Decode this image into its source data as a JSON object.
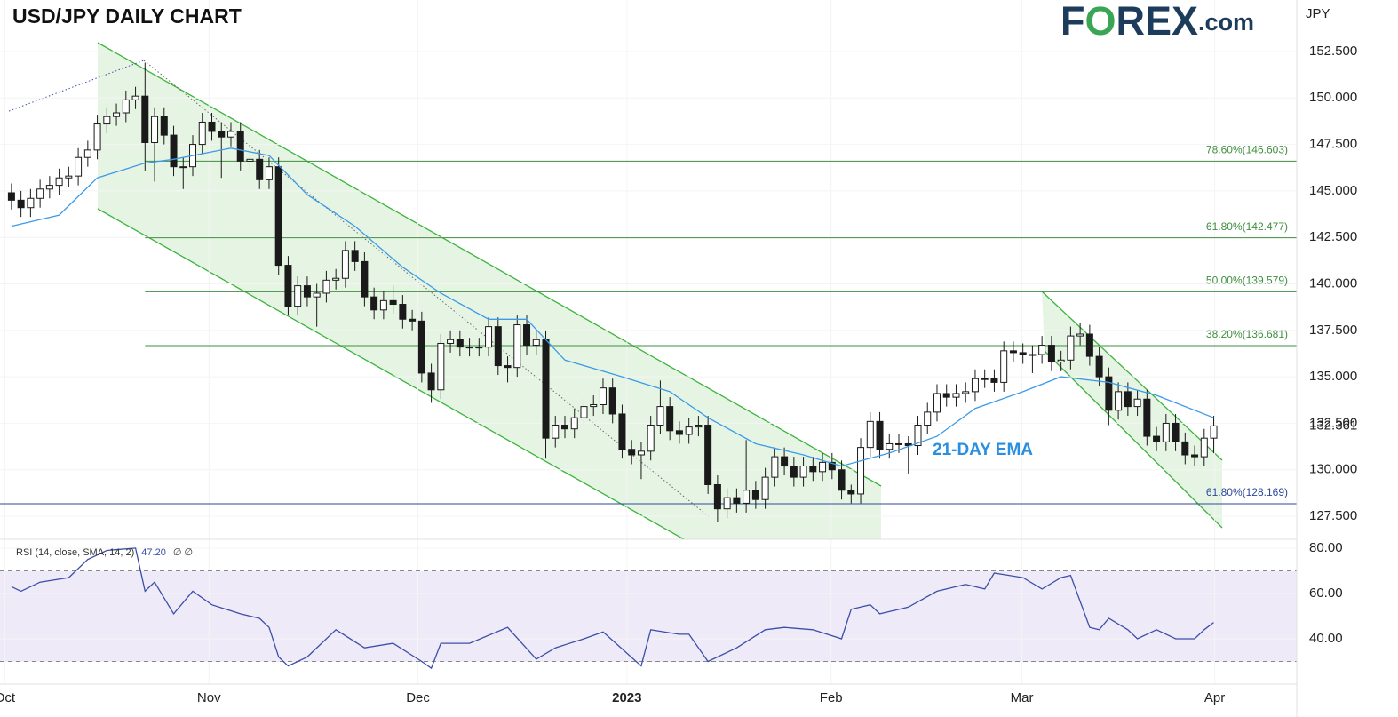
{
  "chart_data": {
    "type": "candlestick",
    "title": "USD/JPY DAILY CHART",
    "brand": [
      "F",
      "O",
      "REX",
      ".com"
    ],
    "unit_label": "JPY",
    "annotation": "21-DAY EMA",
    "xlim": [
      -1.2,
      134.7
    ],
    "xticks": [
      {
        "value": -0.7,
        "label": "Oct"
      },
      {
        "value": 20.7,
        "label": "Nov"
      },
      {
        "value": 42.6,
        "label": "Dec"
      },
      {
        "value": 64.5,
        "label": "2023",
        "emphasis": true
      },
      {
        "value": 85.9,
        "label": "Feb"
      },
      {
        "value": 105.9,
        "label": "Mar"
      },
      {
        "value": 126.1,
        "label": "Apr"
      }
    ],
    "ylim": [
      126.26,
      155.27
    ],
    "yticks": [
      {
        "value": 127.5,
        "label": "127.500"
      },
      {
        "value": 130,
        "label": "130.000"
      },
      {
        "value": 132.5,
        "label": "132.500"
      },
      {
        "value": 135,
        "label": "135.000"
      },
      {
        "value": 137.5,
        "label": "137.500"
      },
      {
        "value": 140,
        "label": "140.000"
      },
      {
        "value": 142.5,
        "label": "142.500"
      },
      {
        "value": 145,
        "label": "145.000"
      },
      {
        "value": 147.5,
        "label": "147.500"
      },
      {
        "value": 150,
        "label": "150.000"
      },
      {
        "value": 152.5,
        "label": "152.500"
      }
    ],
    "candles": {
      "up_color": "#ffffff",
      "down_color": "#1a1a1a",
      "border_color": "#1a1a1a",
      "open": [
        144.9,
        144.5,
        144.1,
        144.6,
        145.1,
        145.3,
        145.7,
        145.8,
        146.8,
        147.2,
        148.6,
        149.0,
        149.2,
        149.9,
        150.1,
        147.6,
        149.0,
        148.0,
        146.3,
        146.3,
        147.5,
        148.7,
        148.2,
        147.9,
        148.2,
        146.6,
        146.7,
        145.6,
        146.3,
        141.0,
        138.8,
        139.9,
        139.3,
        139.5,
        140.2,
        140.3,
        141.8,
        141.2,
        139.3,
        138.6,
        139.1,
        138.9,
        138.1,
        138.0,
        135.2,
        134.3,
        136.8,
        137.0,
        136.6,
        136.6,
        136.6,
        137.7,
        135.6,
        135.5,
        137.8,
        136.7,
        137.0,
        131.7,
        132.4,
        132.2,
        132.8,
        133.4,
        133.5,
        134.4,
        133.0,
        131.1,
        130.8,
        131.0,
        132.4,
        133.4,
        132.1,
        131.9,
        132.3,
        132.4,
        129.2,
        127.9,
        128.5,
        128.2,
        128.9,
        128.4,
        129.6,
        130.7,
        130.2,
        129.6,
        130.2,
        129.9,
        130.4,
        130.0,
        128.9,
        128.7,
        131.2,
        132.6,
        131.1,
        131.4,
        131.4,
        131.3,
        132.4,
        133.1,
        134.1,
        133.9,
        134.1,
        134.2,
        134.9,
        134.9,
        134.7,
        136.4,
        136.3,
        136.2,
        136.2,
        136.7,
        135.8,
        135.9,
        137.2,
        137.3,
        136.1,
        135.0,
        133.2,
        134.2,
        133.4,
        133.8,
        131.8,
        131.5,
        132.5,
        131.5,
        130.8,
        130.7,
        131.7
      ],
      "high": [
        145.4,
        145.0,
        145.1,
        145.6,
        145.8,
        146.2,
        146.3,
        147.3,
        147.7,
        149.1,
        149.5,
        149.7,
        150.4,
        150.6,
        151.9,
        149.5,
        149.5,
        148.5,
        146.8,
        148.0,
        149.2,
        149.2,
        148.7,
        148.7,
        148.7,
        147.2,
        147.2,
        146.8,
        146.8,
        141.5,
        140.4,
        140.4,
        140.0,
        140.7,
        140.8,
        142.3,
        142.3,
        141.7,
        139.8,
        139.6,
        139.9,
        139.4,
        138.6,
        138.5,
        135.7,
        137.3,
        137.5,
        137.5,
        137.1,
        137.1,
        138.2,
        138.2,
        136.1,
        138.3,
        138.3,
        137.5,
        137.5,
        132.9,
        132.9,
        133.3,
        133.9,
        134.0,
        134.9,
        134.9,
        133.5,
        131.6,
        131.5,
        132.9,
        134.8,
        133.9,
        132.6,
        132.8,
        132.9,
        132.9,
        129.7,
        129.0,
        129.0,
        131.6,
        129.4,
        130.1,
        131.2,
        131.2,
        130.7,
        130.7,
        130.7,
        130.9,
        130.9,
        130.5,
        129.2,
        131.7,
        133.1,
        133.1,
        131.9,
        131.9,
        131.8,
        132.9,
        133.6,
        134.6,
        134.6,
        134.6,
        134.7,
        135.4,
        135.4,
        135.4,
        136.9,
        136.9,
        136.8,
        136.7,
        137.2,
        137.2,
        136.4,
        137.7,
        137.9,
        137.8,
        136.6,
        135.5,
        134.7,
        134.7,
        134.3,
        134.3,
        132.3,
        133.0,
        133.0,
        132.0,
        131.3,
        132.2,
        132.9
      ],
      "low": [
        144.0,
        143.6,
        143.6,
        144.1,
        144.6,
        144.8,
        145.2,
        145.3,
        146.3,
        146.7,
        148.1,
        148.5,
        148.7,
        149.4,
        146.1,
        145.5,
        147.5,
        145.8,
        145.1,
        145.8,
        147.0,
        147.7,
        145.7,
        147.4,
        146.1,
        146.1,
        145.1,
        145.1,
        140.5,
        138.3,
        138.3,
        138.8,
        137.7,
        139.0,
        139.7,
        139.8,
        140.7,
        138.8,
        138.1,
        138.1,
        138.4,
        137.6,
        137.5,
        134.7,
        133.6,
        133.8,
        136.3,
        136.1,
        136.1,
        136.1,
        136.1,
        135.1,
        134.7,
        135.0,
        136.2,
        136.2,
        130.6,
        131.2,
        131.7,
        131.7,
        132.3,
        132.9,
        133.0,
        132.5,
        130.6,
        130.3,
        129.5,
        130.5,
        131.9,
        131.6,
        131.4,
        131.4,
        131.8,
        128.7,
        127.2,
        127.4,
        127.7,
        127.7,
        127.9,
        127.9,
        129.1,
        129.7,
        129.1,
        129.1,
        129.4,
        129.4,
        129.5,
        128.4,
        128.2,
        128.2,
        130.7,
        130.6,
        130.6,
        130.9,
        129.8,
        130.8,
        131.9,
        132.6,
        133.4,
        133.4,
        133.6,
        133.7,
        134.4,
        134.2,
        134.2,
        135.8,
        135.7,
        135.2,
        135.7,
        135.3,
        135.3,
        135.4,
        136.7,
        135.6,
        134.5,
        132.4,
        132.7,
        132.9,
        132.9,
        131.3,
        131.0,
        131.0,
        131.0,
        130.3,
        130.2,
        130.2,
        130.9
      ],
      "close": [
        144.5,
        144.1,
        144.6,
        145.1,
        145.3,
        145.7,
        145.8,
        146.8,
        147.2,
        148.6,
        149.0,
        149.2,
        149.9,
        150.1,
        147.6,
        149.0,
        148.0,
        146.3,
        146.3,
        147.5,
        148.7,
        148.2,
        147.9,
        148.2,
        146.6,
        146.7,
        145.6,
        146.3,
        141.0,
        138.8,
        139.9,
        139.3,
        139.5,
        140.2,
        140.3,
        141.8,
        141.2,
        139.3,
        138.6,
        139.1,
        138.9,
        138.1,
        138.0,
        135.2,
        134.3,
        136.8,
        137.0,
        136.6,
        136.6,
        136.6,
        137.7,
        135.6,
        135.5,
        137.8,
        136.7,
        137.0,
        131.7,
        132.4,
        132.2,
        132.8,
        133.4,
        133.5,
        134.4,
        133.0,
        131.1,
        130.8,
        131.0,
        132.4,
        133.4,
        132.1,
        131.9,
        132.3,
        132.4,
        129.2,
        127.9,
        128.5,
        128.2,
        128.9,
        128.4,
        129.6,
        130.7,
        130.2,
        129.6,
        130.2,
        129.9,
        130.4,
        130.0,
        128.9,
        128.7,
        131.2,
        132.6,
        131.1,
        131.4,
        131.4,
        131.3,
        132.4,
        133.1,
        134.1,
        133.9,
        134.1,
        134.2,
        134.9,
        134.9,
        134.7,
        136.4,
        136.3,
        136.2,
        136.2,
        136.7,
        135.8,
        135.9,
        137.2,
        137.3,
        136.1,
        135.0,
        133.2,
        134.2,
        133.4,
        133.8,
        131.8,
        131.5,
        132.5,
        131.5,
        130.8,
        130.7,
        131.7,
        132.361
      ]
    },
    "ema": {
      "color": "#3d9ae8",
      "x": [
        0,
        5,
        9,
        14,
        17,
        23,
        27,
        31,
        36,
        41,
        45,
        50,
        54,
        58,
        64,
        69,
        73,
        78,
        83,
        87,
        92,
        97,
        101,
        106,
        110,
        115,
        120,
        126
      ],
      "values": [
        143.1,
        143.7,
        145.7,
        146.5,
        146.7,
        147.3,
        146.9,
        144.8,
        143.1,
        140.9,
        139.5,
        138.1,
        138.1,
        135.9,
        135.0,
        134.2,
        132.8,
        131.4,
        130.8,
        130.2,
        130.9,
        131.8,
        133.3,
        134.2,
        135.0,
        134.7,
        134.0,
        132.8
      ]
    },
    "fib_levels": [
      {
        "label": "78.60%(146.603)",
        "value": 146.603,
        "start": 14,
        "color": "#3f8f3f"
      },
      {
        "label": "61.80%(142.477)",
        "value": 142.477,
        "start": 14,
        "color": "#3f8f3f"
      },
      {
        "label": "50.00%(139.579)",
        "value": 139.579,
        "start": 14,
        "color": "#3f8f3f"
      },
      {
        "label": "38.20%(136.681)",
        "value": 136.681,
        "start": 14,
        "color": "#3f8f3f"
      },
      {
        "label": "61.80%(128.169)",
        "value": 128.169,
        "start": -1.2,
        "color": "#2c4a9a"
      }
    ],
    "rsi": {
      "label": "RSI (14, close, SMA, 14, 2)",
      "value_label": "47.20",
      "extra": "∅ ∅",
      "color": "#3b4fa8",
      "ylim": [
        20,
        83.9
      ],
      "yticks": [
        {
          "value": 40,
          "label": "40.00"
        },
        {
          "value": 60,
          "label": "60.00"
        },
        {
          "value": 80,
          "label": "80.00"
        }
      ],
      "bands": [
        30,
        70
      ],
      "x": [
        0,
        1,
        3,
        6,
        8,
        10,
        13,
        14,
        15,
        17,
        19,
        21,
        24,
        26,
        27,
        28,
        29,
        31,
        34,
        37,
        40,
        43,
        44,
        45,
        48,
        52,
        55,
        57,
        60,
        62,
        66,
        67,
        70,
        71,
        73,
        76,
        79,
        81,
        84,
        87,
        88,
        90,
        91,
        92,
        94,
        97,
        99,
        100,
        102,
        103,
        106,
        108,
        110,
        111,
        113,
        114,
        115,
        117,
        118,
        120,
        122,
        124,
        125,
        126
      ],
      "values": [
        63,
        61,
        65,
        67,
        75,
        79,
        80,
        61,
        65,
        51,
        61,
        55,
        51,
        49,
        45,
        32,
        28,
        32,
        44,
        36,
        38,
        30,
        27,
        38,
        38,
        45,
        31,
        36,
        40,
        43,
        28,
        44,
        42,
        42,
        30,
        36,
        44,
        45,
        44,
        40,
        53,
        55,
        51,
        52,
        54,
        61,
        63,
        64,
        62,
        69,
        67,
        62,
        67,
        68,
        45,
        44,
        49,
        44,
        40,
        44,
        40,
        40,
        44,
        47.2
      ]
    }
  }
}
